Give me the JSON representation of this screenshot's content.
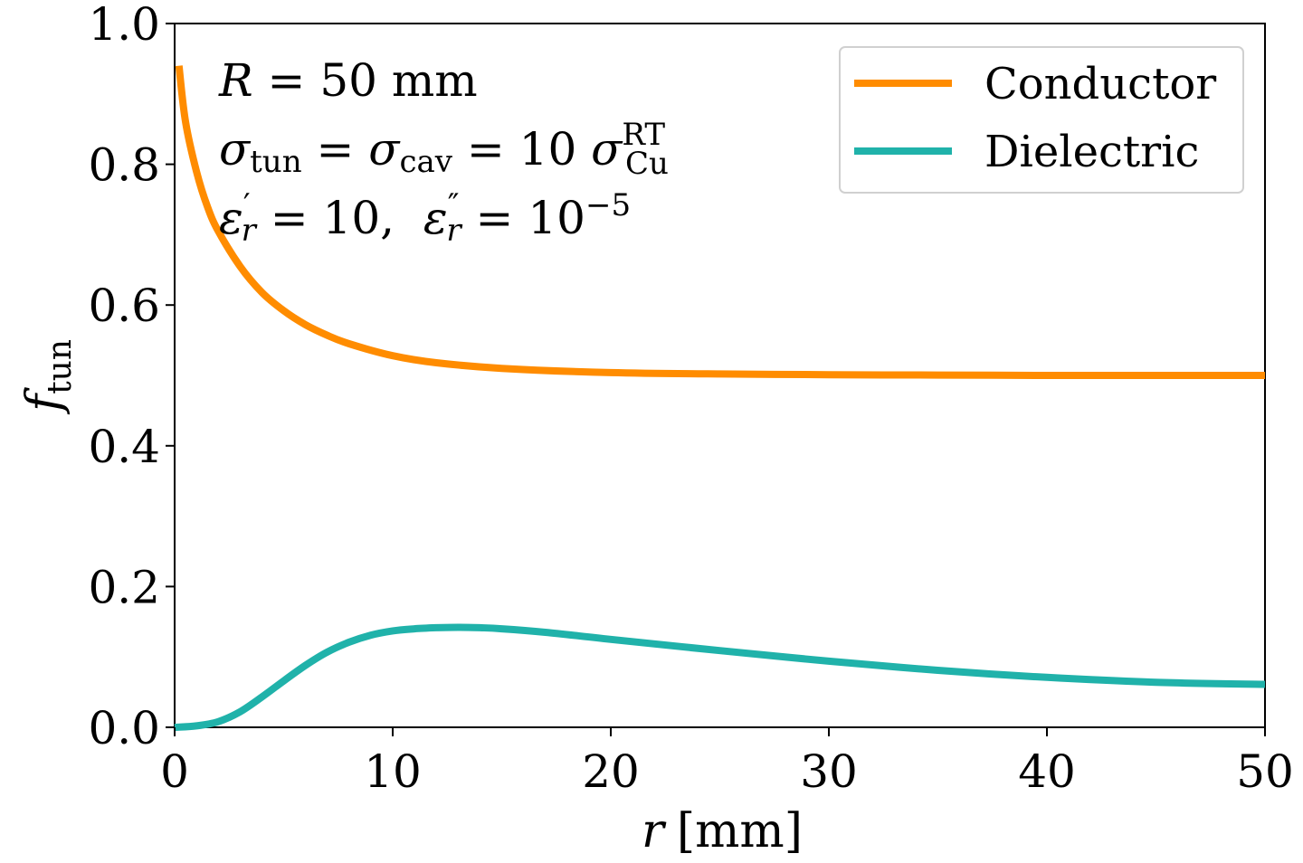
{
  "chart_data": {
    "type": "line",
    "title": "",
    "xlabel": {
      "var": "r",
      "unit": "[mm]"
    },
    "ylabel": {
      "base": "f",
      "sub": "tun"
    },
    "xlim": [
      0,
      50
    ],
    "ylim": [
      0.0,
      1.0
    ],
    "xticks": [
      0,
      10,
      20,
      30,
      40,
      50
    ],
    "xtick_labels": [
      "0",
      "10",
      "20",
      "30",
      "40",
      "50"
    ],
    "yticks": [
      0.0,
      0.2,
      0.4,
      0.6,
      0.8,
      1.0
    ],
    "ytick_labels": [
      "0.0",
      "0.2",
      "0.4",
      "0.6",
      "0.8",
      "1.0"
    ],
    "grid": false,
    "legend_position": "top-right",
    "series": [
      {
        "name": "Conductor",
        "color": "#ff8c00",
        "x": [
          0.2,
          0.5,
          1,
          1.5,
          2,
          3,
          4,
          5,
          6,
          7,
          8,
          10,
          12,
          15,
          20,
          25,
          30,
          35,
          40,
          45,
          50
        ],
        "y": [
          0.94,
          0.86,
          0.79,
          0.74,
          0.705,
          0.655,
          0.618,
          0.592,
          0.572,
          0.557,
          0.545,
          0.528,
          0.518,
          0.51,
          0.504,
          0.502,
          0.501,
          0.5005,
          0.5,
          0.5,
          0.5
        ]
      },
      {
        "name": "Dielectric",
        "color": "#20b2aa",
        "x": [
          0,
          1,
          2,
          3,
          4,
          5,
          6,
          7,
          8,
          9,
          10,
          11,
          12,
          13,
          14,
          15,
          17,
          20,
          25,
          30,
          35,
          40,
          45,
          50
        ],
        "y": [
          0.0,
          0.002,
          0.008,
          0.022,
          0.043,
          0.066,
          0.088,
          0.107,
          0.121,
          0.131,
          0.137,
          0.14,
          0.1415,
          0.142,
          0.1415,
          0.14,
          0.135,
          0.125,
          0.109,
          0.094,
          0.081,
          0.071,
          0.064,
          0.061
        ]
      }
    ],
    "annotations": {
      "line1": {
        "lhs": "R",
        "eq": " = 50 mm"
      },
      "line2": {
        "s1": "σ",
        "sub1": "tun",
        "eq1": " = ",
        "s2": "σ",
        "sub2": "cav",
        "eq2": " = 10 ",
        "s3": "σ",
        "sup3": "RT",
        "sub3": "Cu"
      },
      "line3": {
        "e1": "ε",
        "sup1": "′",
        "sub1": "r",
        "eq1": " = 10,  ",
        "e2": "ε",
        "sup2": "″",
        "sub2": "r",
        "eq2": " = 10",
        "exp": "−5"
      }
    }
  }
}
